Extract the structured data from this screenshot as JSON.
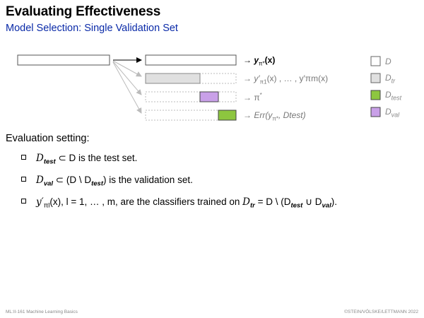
{
  "title": "Evaluating Effectiveness",
  "subtitle": "Model Selection: Single Validation Set",
  "diagram": {
    "rows": [
      {
        "label_pre": "→ ",
        "label_math": "y",
        "label_sub": "π*",
        "label_post": "(x)"
      },
      {
        "label_pre": "→ ",
        "label_math": "y′",
        "label_sub": "π1",
        "label_post": "(x) , … , y′πm(x)"
      },
      {
        "label_pre": "→ ",
        "label_math": "π",
        "label_sub": "*",
        "label_post": ""
      },
      {
        "label_pre": "→ Err(",
        "label_math": "y",
        "label_sub": "π*",
        "label_post": ", Dtest)"
      }
    ],
    "legend": [
      {
        "text": "D",
        "sub": "",
        "color": "#ffffff"
      },
      {
        "text": "D",
        "sub": "tr",
        "color": "#e0e0e0"
      },
      {
        "text": "D",
        "sub": "test",
        "color": "#8dc63f"
      },
      {
        "text": "D",
        "sub": "val",
        "color": "#c9a0e8"
      }
    ]
  },
  "setting_heading": "Evaluation setting:",
  "bullets": [
    {
      "a": "D",
      "a_sub": "test",
      "b": " ⊂ D",
      "c": "  is the test set."
    },
    {
      "a": "D",
      "a_sub": "val",
      "b": " ⊂ (D \\ D",
      "b_sub": "test",
      "c": ")  is the validation set."
    },
    {
      "a": "y′",
      "a_sub": "πl",
      "b": "(x),  l = 1, … , m,",
      "c": "  are the classifiers trained on "
    }
  ],
  "bullet3_tail": {
    "d1": "D",
    "d1_sub": "tr",
    "d2": " = D \\ (D",
    "d2_sub": "test",
    "d3": " ∪ D",
    "d3_sub": "val",
    "d4": ")."
  },
  "footer": {
    "left": "ML:II-161    Machine Learning Basics",
    "right": "©STEIN/VÖLSKE/LETTMANN 2022"
  }
}
